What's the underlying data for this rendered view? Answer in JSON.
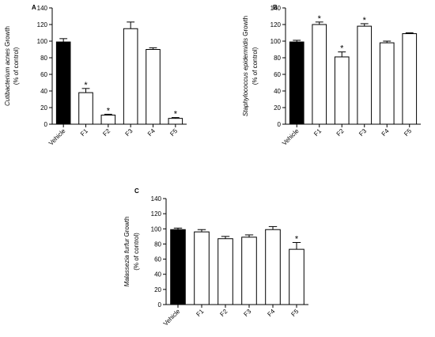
{
  "chart_data": [
    {
      "type": "bar",
      "panel": "A",
      "ylabel_species": "Cutibacterium acnes",
      "ylabel_rest": " Growth",
      "ylabel_line2": "(% of control)",
      "categories": [
        "Vehicle",
        "F1",
        "F2",
        "F3",
        "F4",
        "F5"
      ],
      "values": [
        99,
        38,
        11,
        115,
        90,
        7
      ],
      "errors": [
        4,
        5,
        1,
        8,
        2,
        1
      ],
      "significant": [
        false,
        true,
        true,
        false,
        false,
        true
      ],
      "fills": [
        "#000000",
        "#ffffff",
        "#ffffff",
        "#ffffff",
        "#ffffff",
        "#ffffff"
      ],
      "significance_mark": "*",
      "ylim": [
        0,
        140
      ],
      "yticks": [
        "0",
        "20",
        "40",
        "60",
        "80",
        "100",
        "120",
        "140"
      ]
    },
    {
      "type": "bar",
      "panel": "B",
      "ylabel_species": "Staphylococcus epidermidis",
      "ylabel_rest": " Growth",
      "ylabel_line2": "(% of control)",
      "categories": [
        "Vehicle",
        "F1",
        "F2",
        "F3",
        "F4",
        "F5"
      ],
      "values": [
        99,
        120,
        81,
        118,
        98,
        109
      ],
      "errors": [
        2,
        3,
        6,
        3,
        2,
        1
      ],
      "significant": [
        false,
        true,
        true,
        true,
        false,
        false
      ],
      "fills": [
        "#000000",
        "#ffffff",
        "#ffffff",
        "#ffffff",
        "#ffffff",
        "#ffffff"
      ],
      "significance_mark": "*",
      "ylim": [
        0,
        140
      ],
      "yticks": [
        "0",
        "20",
        "40",
        "60",
        "80",
        "100",
        "120",
        "140"
      ]
    },
    {
      "type": "bar",
      "panel": "C",
      "ylabel_species": "Malassezia furfur",
      "ylabel_rest": " Growth",
      "ylabel_line2": "(% of control)",
      "categories": [
        "Vehicle",
        "F1",
        "F2",
        "F3",
        "F4",
        "F5"
      ],
      "values": [
        99,
        96,
        87,
        89,
        99,
        73
      ],
      "errors": [
        2,
        3,
        3,
        3,
        4,
        9
      ],
      "significant": [
        false,
        false,
        false,
        false,
        false,
        true
      ],
      "fills": [
        "#000000",
        "#ffffff",
        "#ffffff",
        "#ffffff",
        "#ffffff",
        "#ffffff"
      ],
      "significance_mark": "*",
      "ylim": [
        0,
        140
      ],
      "yticks": [
        "0",
        "20",
        "40",
        "60",
        "80",
        "100",
        "120",
        "140"
      ]
    }
  ]
}
